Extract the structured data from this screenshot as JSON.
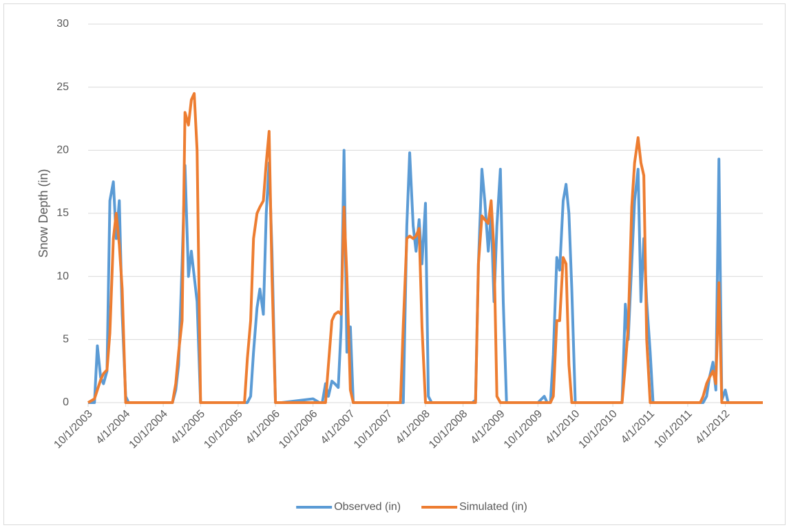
{
  "chart_data": {
    "type": "line",
    "y_label": "Snow Depth (in)",
    "x": [
      "2003-10-01",
      "2003-11-01",
      "2003-11-15",
      "2003-12-01",
      "2003-12-15",
      "2004-01-01",
      "2004-01-15",
      "2004-02-01",
      "2004-02-15",
      "2004-03-01",
      "2004-03-15",
      "2004-04-01",
      "2004-04-15",
      "2004-05-01",
      "2004-10-01",
      "2004-11-01",
      "2004-11-15",
      "2004-12-01",
      "2004-12-15",
      "2005-01-01",
      "2005-01-15",
      "2005-02-01",
      "2005-02-15",
      "2005-03-01",
      "2005-03-15",
      "2005-04-01",
      "2005-04-15",
      "2005-05-01",
      "2005-10-01",
      "2005-11-01",
      "2005-11-15",
      "2005-12-01",
      "2005-12-15",
      "2006-01-01",
      "2006-01-15",
      "2006-02-01",
      "2006-02-15",
      "2006-03-01",
      "2006-03-15",
      "2006-04-01",
      "2006-04-15",
      "2006-05-01",
      "2006-10-01",
      "2006-11-01",
      "2006-11-15",
      "2006-12-01",
      "2006-12-15",
      "2007-01-01",
      "2007-01-15",
      "2007-02-01",
      "2007-02-15",
      "2007-03-01",
      "2007-03-15",
      "2007-04-01",
      "2007-04-15",
      "2007-05-01",
      "2007-10-01",
      "2007-11-01",
      "2007-11-15",
      "2007-12-01",
      "2007-12-15",
      "2008-01-01",
      "2008-01-15",
      "2008-02-01",
      "2008-02-15",
      "2008-03-01",
      "2008-03-15",
      "2008-04-01",
      "2008-04-15",
      "2008-05-01",
      "2008-10-01",
      "2008-11-01",
      "2008-11-15",
      "2008-12-01",
      "2008-12-15",
      "2009-01-01",
      "2009-01-15",
      "2009-02-01",
      "2009-02-15",
      "2009-03-01",
      "2009-03-15",
      "2009-04-01",
      "2009-04-15",
      "2009-05-01",
      "2009-10-01",
      "2009-11-01",
      "2009-11-15",
      "2009-12-01",
      "2009-12-15",
      "2010-01-01",
      "2010-01-15",
      "2010-02-01",
      "2010-02-15",
      "2010-03-01",
      "2010-03-15",
      "2010-04-01",
      "2010-04-15",
      "2010-05-01",
      "2010-10-01",
      "2010-11-01",
      "2010-11-15",
      "2010-12-01",
      "2010-12-15",
      "2011-01-01",
      "2011-01-15",
      "2011-02-01",
      "2011-02-15",
      "2011-03-01",
      "2011-03-15",
      "2011-04-01",
      "2011-04-15",
      "2011-05-01",
      "2011-10-01",
      "2011-11-01",
      "2011-11-15",
      "2011-12-01",
      "2011-12-15",
      "2012-01-01",
      "2012-01-15",
      "2012-02-01",
      "2012-02-15",
      "2012-03-01",
      "2012-03-15",
      "2012-04-01",
      "2012-04-15",
      "2012-05-01",
      "2012-10-01"
    ],
    "series": [
      {
        "name": "Observed (in)",
        "color": "#5b9bd5",
        "values": [
          0,
          0,
          4.5,
          2,
          1.5,
          2.5,
          16,
          17.5,
          13,
          16,
          7,
          0.5,
          0,
          0,
          0,
          0,
          0,
          1,
          3,
          11,
          18.8,
          10,
          12,
          10,
          8,
          0,
          0,
          0,
          0,
          0,
          0,
          0.5,
          4,
          7.5,
          9,
          7,
          15,
          19,
          12,
          0,
          0,
          0,
          0.3,
          0,
          0,
          1.5,
          0.5,
          1.7,
          1.5,
          1.2,
          6,
          20,
          4,
          6,
          0,
          0,
          0,
          0,
          0,
          0,
          0,
          14,
          19.8,
          14,
          12,
          14.5,
          11,
          15.8,
          0.5,
          0,
          0,
          0,
          0,
          0.2,
          11,
          18.5,
          16,
          12,
          15,
          8,
          14,
          18.5,
          8,
          0,
          0,
          0.5,
          0,
          0,
          3.8,
          11.5,
          10.5,
          16,
          17.3,
          15,
          9,
          0,
          0,
          0,
          0,
          0,
          0,
          7.8,
          5,
          11,
          16,
          18.5,
          8,
          13,
          8,
          4,
          0,
          0,
          0,
          0,
          0,
          0,
          0,
          0.5,
          2,
          3.2,
          1,
          19.3,
          0.2,
          1,
          0,
          0,
          0
        ]
      },
      {
        "name": "Simulated (in)",
        "color": "#ed7d31",
        "values": [
          0,
          0.3,
          1,
          1.8,
          2.3,
          2.6,
          5.5,
          13,
          15,
          12.5,
          9,
          0,
          0,
          0,
          0,
          0,
          0,
          1.5,
          4,
          6.5,
          23,
          22,
          24,
          24.5,
          20,
          0,
          0,
          0,
          0,
          0,
          3.5,
          6.5,
          13,
          15,
          15.5,
          16,
          19,
          21.5,
          10,
          0,
          0,
          0,
          0,
          0,
          0,
          0,
          3,
          6.5,
          7,
          7.2,
          7,
          15.5,
          10,
          1,
          0,
          0,
          0,
          0,
          0,
          0,
          6.2,
          13,
          13.2,
          13,
          13.2,
          13.8,
          6,
          0,
          0,
          0,
          0,
          0,
          0,
          0,
          11,
          14.8,
          14.5,
          14.2,
          16,
          12,
          0.5,
          0,
          0,
          0,
          0,
          0,
          0,
          0,
          0.5,
          6.5,
          6.5,
          11.5,
          11,
          3,
          0,
          0,
          0,
          0,
          0,
          0,
          0,
          3,
          6,
          15.5,
          19,
          21,
          19,
          18,
          5,
          0,
          0,
          0,
          0,
          0,
          0,
          0,
          0.5,
          1.5,
          2,
          2.5,
          1.5,
          9.5,
          0,
          0,
          0,
          0,
          0
        ]
      }
    ],
    "xlim": [
      "2003-10-01",
      "2012-10-01"
    ],
    "xticks": [
      {
        "value": "2003-10-01",
        "label": "10/1/2003"
      },
      {
        "value": "2004-04-01",
        "label": "4/1/2004"
      },
      {
        "value": "2004-10-01",
        "label": "10/1/2004"
      },
      {
        "value": "2005-04-01",
        "label": "4/1/2005"
      },
      {
        "value": "2005-10-01",
        "label": "10/1/2005"
      },
      {
        "value": "2006-04-01",
        "label": "4/1/2006"
      },
      {
        "value": "2006-10-01",
        "label": "10/1/2006"
      },
      {
        "value": "2007-04-01",
        "label": "4/1/2007"
      },
      {
        "value": "2007-10-01",
        "label": "10/1/2007"
      },
      {
        "value": "2008-04-01",
        "label": "4/1/2008"
      },
      {
        "value": "2008-10-01",
        "label": "10/1/2008"
      },
      {
        "value": "2009-04-01",
        "label": "4/1/2009"
      },
      {
        "value": "2009-10-01",
        "label": "10/1/2009"
      },
      {
        "value": "2010-04-01",
        "label": "4/1/2010"
      },
      {
        "value": "2010-10-01",
        "label": "10/1/2010"
      },
      {
        "value": "2011-04-01",
        "label": "4/1/2011"
      },
      {
        "value": "2011-10-01",
        "label": "10/1/2011"
      },
      {
        "value": "2012-04-01",
        "label": "4/1/2012"
      }
    ],
    "ylim": [
      0,
      30
    ],
    "yticks": [
      0,
      5,
      10,
      15,
      20,
      25,
      30
    ],
    "grid": true,
    "legend": "bottom"
  }
}
